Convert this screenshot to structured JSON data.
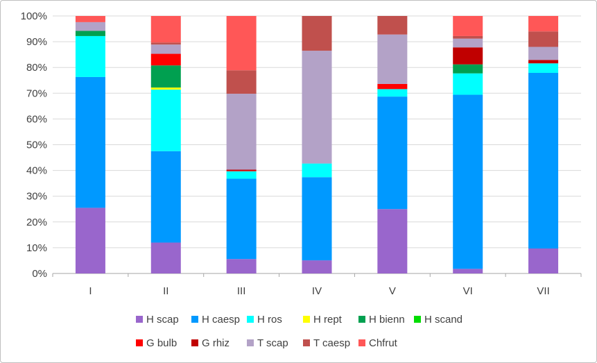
{
  "chart_data": {
    "type": "bar",
    "stacked": "percent",
    "title": "",
    "xlabel": "",
    "ylabel": "",
    "categories": [
      "I",
      "II",
      "III",
      "IV",
      "V",
      "VI",
      "VII"
    ],
    "ylim": [
      0,
      100
    ],
    "yticks": [
      "0%",
      "10%",
      "20%",
      "30%",
      "40%",
      "50%",
      "60%",
      "70%",
      "80%",
      "90%",
      "100%"
    ],
    "grid": true,
    "legend_position": "bottom",
    "series": [
      {
        "name": "H scap",
        "color": "#9966CC",
        "values": [
          25.5,
          12,
          5.6,
          5.1,
          25,
          1.8,
          9.7
        ]
      },
      {
        "name": "H caesp",
        "color": "#0099FF",
        "values": [
          50.8,
          35.5,
          31.2,
          32.3,
          43.7,
          67.6,
          68.2
        ]
      },
      {
        "name": "H ros",
        "color": "#00FFFF",
        "values": [
          15.9,
          23.9,
          2.9,
          5.3,
          2.9,
          8.3,
          3.7
        ]
      },
      {
        "name": "H rept",
        "color": "#FFFF00",
        "values": [
          0,
          0.8,
          0,
          0,
          0,
          0,
          0
        ]
      },
      {
        "name": "H bienn",
        "color": "#00A050",
        "values": [
          2,
          8.6,
          0,
          0,
          0,
          3.5,
          0
        ]
      },
      {
        "name": "H scand",
        "color": "#00DD00",
        "values": [
          0,
          0,
          0,
          0,
          0,
          0,
          0
        ]
      },
      {
        "name": "G bulb",
        "color": "#FF0000",
        "values": [
          0,
          4.5,
          0.2,
          0,
          2,
          0,
          0
        ]
      },
      {
        "name": "G rhiz",
        "color": "#C00000",
        "values": [
          0,
          0,
          0.4,
          0,
          0,
          6.6,
          1.3
        ]
      },
      {
        "name": "T scap",
        "color": "#B3A2C7",
        "values": [
          3.4,
          3.6,
          29.5,
          43.8,
          19.2,
          3.4,
          5.1
        ]
      },
      {
        "name": "T caesp",
        "color": "#C0504D",
        "values": [
          0,
          0.8,
          9.1,
          13.5,
          7.2,
          1,
          6
        ]
      },
      {
        "name": "Chfrut",
        "color": "#FF5757",
        "values": [
          2.4,
          10.3,
          21.1,
          0,
          0,
          7.8,
          6
        ]
      }
    ]
  }
}
